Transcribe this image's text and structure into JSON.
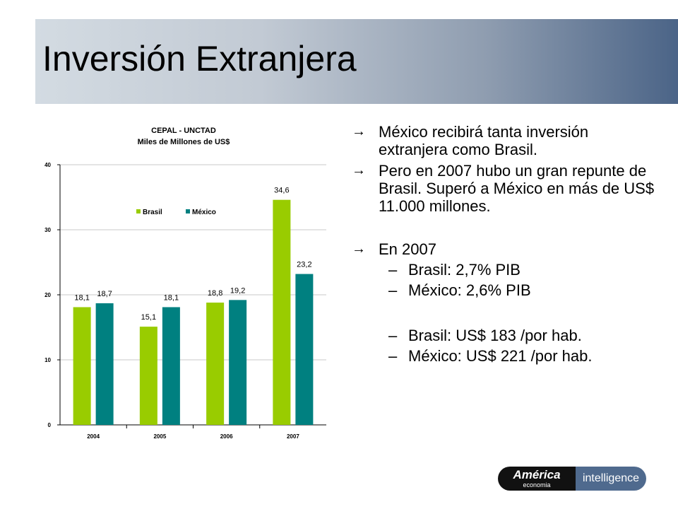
{
  "slide": {
    "title": "Inversión Extranjera"
  },
  "bullets": [
    {
      "text": "México recibirá tanta inversión extranjera como Brasil."
    },
    {
      "text": "Pero en 2007 hubo un gran repunte de Brasil. Superó a México en más de US$ 11.000 millones."
    },
    {
      "text": "En 2007"
    }
  ],
  "sub_bullets_2007": [
    {
      "text": "Brasil: 2,7% PIB"
    },
    {
      "text": "México: 2,6% PIB"
    }
  ],
  "sub_bullets_per_capita": [
    {
      "text": "Brasil: US$ 183 /por hab."
    },
    {
      "text": "México: US$ 221 /por hab."
    }
  ],
  "symbols": {
    "arrow": "→",
    "dash": "–"
  },
  "logo": {
    "left_big": "América",
    "left_small": "economia",
    "right": "intelligence"
  },
  "chart_data": {
    "type": "bar",
    "title": "CEPAL - UNCTAD",
    "subtitle": "Miles de Millones de US$",
    "categories": [
      "2004",
      "2005",
      "2006",
      "2007"
    ],
    "series": [
      {
        "name": "Brasil",
        "values": [
          18.1,
          15.1,
          18.8,
          34.6
        ],
        "labels": [
          "18,1",
          "15,1",
          "18,8",
          "34,6"
        ],
        "color": "#99cc00"
      },
      {
        "name": "México",
        "values": [
          18.7,
          18.1,
          19.2,
          23.2
        ],
        "labels": [
          "18,7",
          "18,1",
          "19,2",
          "23,2"
        ],
        "color": "#008080"
      }
    ],
    "yticks": [
      0,
      10,
      20,
      30,
      40
    ],
    "ylim": [
      0,
      40
    ],
    "grid": true,
    "legend": "top-center"
  }
}
